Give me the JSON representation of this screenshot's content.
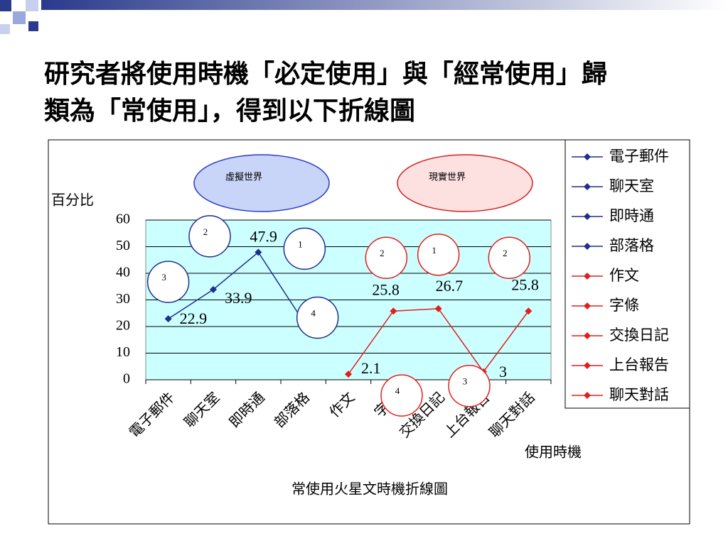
{
  "heading": [
    "研究者將使用時機「必定使用」與「經常使用」歸",
    "類為「常使用」，得到以下折線圖"
  ],
  "chart_data": {
    "type": "line",
    "title": "常使用火星文時機折線圖",
    "y_label": "百分比",
    "x_label": "使用時機",
    "categories": [
      "電子郵件",
      "聊天室",
      "即時通",
      "部落格",
      "作文",
      "字條",
      "交換日記",
      "上台報告",
      "聊天對話"
    ],
    "series": [
      {
        "color": "#1f2f8f",
        "values": [
          22.9,
          33.9,
          47.9,
          22,
          null,
          null,
          null,
          null,
          null
        ]
      },
      {
        "color": "#e0201c",
        "values": [
          null,
          null,
          null,
          null,
          2.1,
          25.8,
          26.7,
          3,
          25.8
        ]
      }
    ],
    "legend": [
      {
        "name": "電子郵件",
        "color": "#1f2f8f"
      },
      {
        "name": "聊天室",
        "color": "#1f2f8f"
      },
      {
        "name": "即時通",
        "color": "#1f2f8f"
      },
      {
        "name": "部落格",
        "color": "#1f2f8f"
      },
      {
        "name": "作文",
        "color": "#e0201c"
      },
      {
        "name": "字條",
        "color": "#e0201c"
      },
      {
        "name": "交換日記",
        "color": "#e0201c"
      },
      {
        "name": "上台報告",
        "color": "#e0201c"
      },
      {
        "name": "聊天對話",
        "color": "#e0201c"
      }
    ],
    "ranks": [
      "3",
      "2",
      "1",
      "4",
      "4",
      "2",
      "1",
      "3",
      "2"
    ],
    "groups": [
      {
        "label": "虛擬世界",
        "color": "#c8d4f8",
        "border": "#2a3cc0"
      },
      {
        "label": "現實世界",
        "color": "#fde0e0",
        "border": "#d02020"
      }
    ],
    "ylim": [
      0,
      60
    ],
    "yticks": [
      0,
      10,
      20,
      30,
      40,
      50,
      60
    ],
    "grid": true,
    "plot_color": "#ccffff"
  }
}
